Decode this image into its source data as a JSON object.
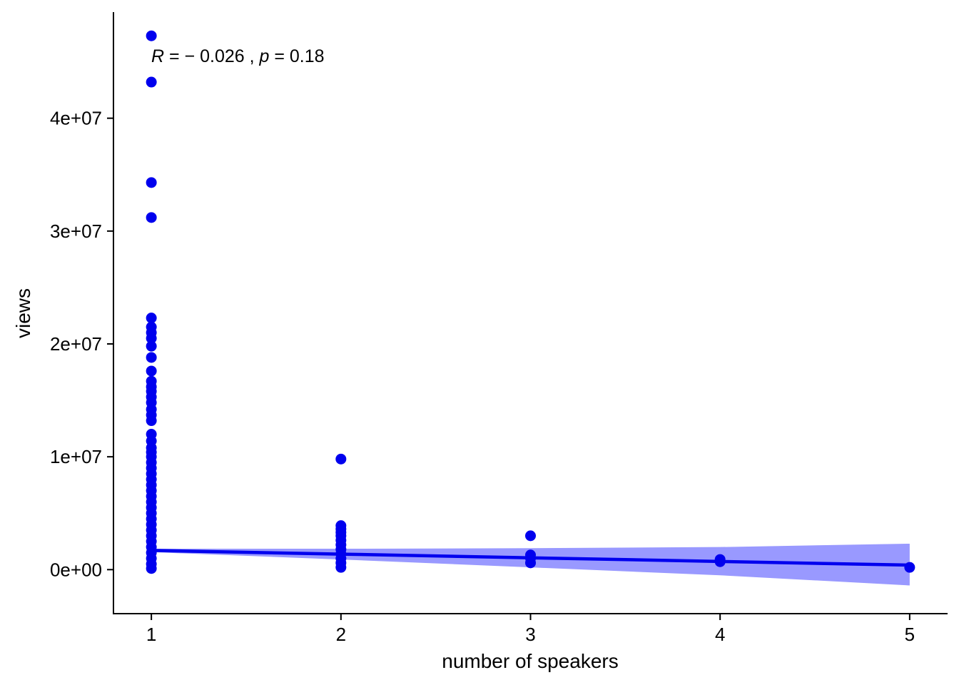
{
  "chart_data": {
    "type": "scatter",
    "xlabel": "number of speakers",
    "ylabel": "views",
    "xlim": [
      0.8,
      5.2
    ],
    "ylim": [
      -3900000,
      49400000
    ],
    "x_ticks": [
      1,
      2,
      3,
      4,
      5
    ],
    "y_ticks": [
      {
        "value": 0,
        "label": "0e+00"
      },
      {
        "value": 10000000,
        "label": "1e+07"
      },
      {
        "value": 20000000,
        "label": "2e+07"
      },
      {
        "value": 30000000,
        "label": "3e+07"
      },
      {
        "value": 40000000,
        "label": "4e+07"
      }
    ],
    "annotation": {
      "R_symbol": "R",
      "R_value": " = − 0.026 , ",
      "p_symbol": "p",
      "p_value": " = 0.18"
    },
    "colors": {
      "points": "#0000ee",
      "line": "#0000ee",
      "band": "#9999ff"
    },
    "series": [
      {
        "points": [
          [
            1,
            47300000
          ],
          [
            1,
            43200000
          ],
          [
            1,
            34300000
          ],
          [
            1,
            31200000
          ],
          [
            1,
            22300000
          ],
          [
            1,
            21500000
          ],
          [
            1,
            21000000
          ],
          [
            1,
            20500000
          ],
          [
            1,
            19800000
          ],
          [
            1,
            18800000
          ],
          [
            1,
            17600000
          ],
          [
            1,
            16700000
          ],
          [
            1,
            16200000
          ],
          [
            1,
            15800000
          ],
          [
            1,
            15300000
          ],
          [
            1,
            14800000
          ],
          [
            1,
            14200000
          ],
          [
            1,
            13700000
          ],
          [
            1,
            13200000
          ],
          [
            1,
            12000000
          ],
          [
            1,
            11400000
          ],
          [
            1,
            10800000
          ],
          [
            1,
            10400000
          ],
          [
            1,
            10000000
          ],
          [
            1,
            9500000
          ],
          [
            1,
            9000000
          ],
          [
            1,
            8500000
          ],
          [
            1,
            8000000
          ],
          [
            1,
            7500000
          ],
          [
            1,
            7000000
          ],
          [
            1,
            6500000
          ],
          [
            1,
            6000000
          ],
          [
            1,
            5500000
          ],
          [
            1,
            5000000
          ],
          [
            1,
            4500000
          ],
          [
            1,
            4000000
          ],
          [
            1,
            3500000
          ],
          [
            1,
            3000000
          ],
          [
            1,
            2500000
          ],
          [
            1,
            2000000
          ],
          [
            1,
            1500000
          ],
          [
            1,
            1000000
          ],
          [
            1,
            500000
          ],
          [
            1,
            100000
          ],
          [
            2,
            9800000
          ],
          [
            2,
            3900000
          ],
          [
            2,
            3600000
          ],
          [
            2,
            3300000
          ],
          [
            2,
            3000000
          ],
          [
            2,
            2600000
          ],
          [
            2,
            2200000
          ],
          [
            2,
            1800000
          ],
          [
            2,
            1400000
          ],
          [
            2,
            1000000
          ],
          [
            2,
            600000
          ],
          [
            2,
            200000
          ],
          [
            3,
            3000000
          ],
          [
            3,
            1300000
          ],
          [
            3,
            1000000
          ],
          [
            3,
            600000
          ],
          [
            4,
            900000
          ],
          [
            4,
            700000
          ],
          [
            5,
            200000
          ]
        ]
      }
    ],
    "fit": {
      "x": [
        1,
        2,
        3,
        4,
        5
      ],
      "y": [
        1700000,
        1375000,
        1050000,
        725000,
        400000
      ],
      "lower": [
        1550000,
        900000,
        200000,
        -500000,
        -1400000
      ],
      "upper": [
        1850000,
        1850000,
        1900000,
        2000000,
        2300000
      ]
    }
  }
}
